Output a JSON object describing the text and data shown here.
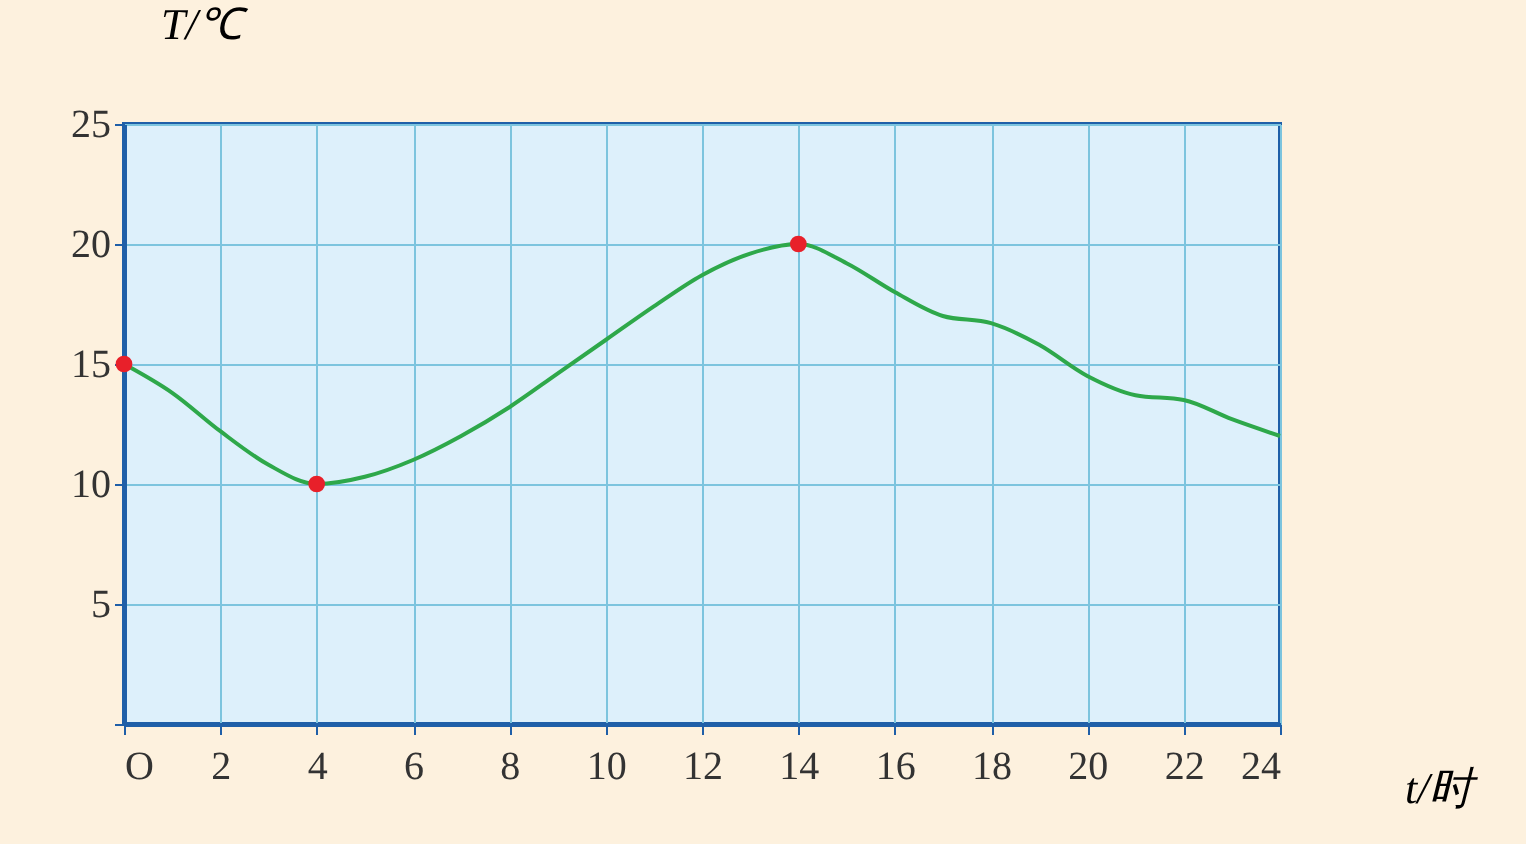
{
  "chart_data": {
    "type": "line",
    "xlabel": "t/时",
    "ylabel": "T/℃",
    "xlim": [
      0,
      24
    ],
    "ylim": [
      0,
      25
    ],
    "xticks": [
      {
        "value": 0,
        "label": "O"
      },
      2,
      4,
      6,
      8,
      10,
      12,
      14,
      16,
      18,
      20,
      22,
      24
    ],
    "yticks": [
      {
        "value": 0,
        "label": null
      },
      5,
      10,
      15,
      20,
      25
    ],
    "grid": true,
    "series": [
      {
        "color": "#2ea84a",
        "marker": "none",
        "x": [
          0,
          1,
          2,
          3,
          4,
          5,
          6,
          7,
          8,
          9,
          10,
          11,
          12,
          13,
          14,
          15,
          16,
          17,
          18,
          19,
          20,
          21,
          22,
          23,
          24
        ],
        "values": [
          15,
          13.8,
          12.2,
          10.8,
          10,
          10.3,
          11,
          12,
          13.2,
          14.6,
          16,
          17.4,
          18.7,
          19.6,
          20,
          19.2,
          18,
          17,
          16.7,
          15.8,
          14.5,
          13.7,
          13.5,
          12.7,
          12
        ]
      },
      {
        "type": "scatter",
        "color": "#e8202a",
        "marker": "circle",
        "x": [
          0,
          4,
          14
        ],
        "values": [
          15,
          10,
          20
        ]
      }
    ]
  }
}
